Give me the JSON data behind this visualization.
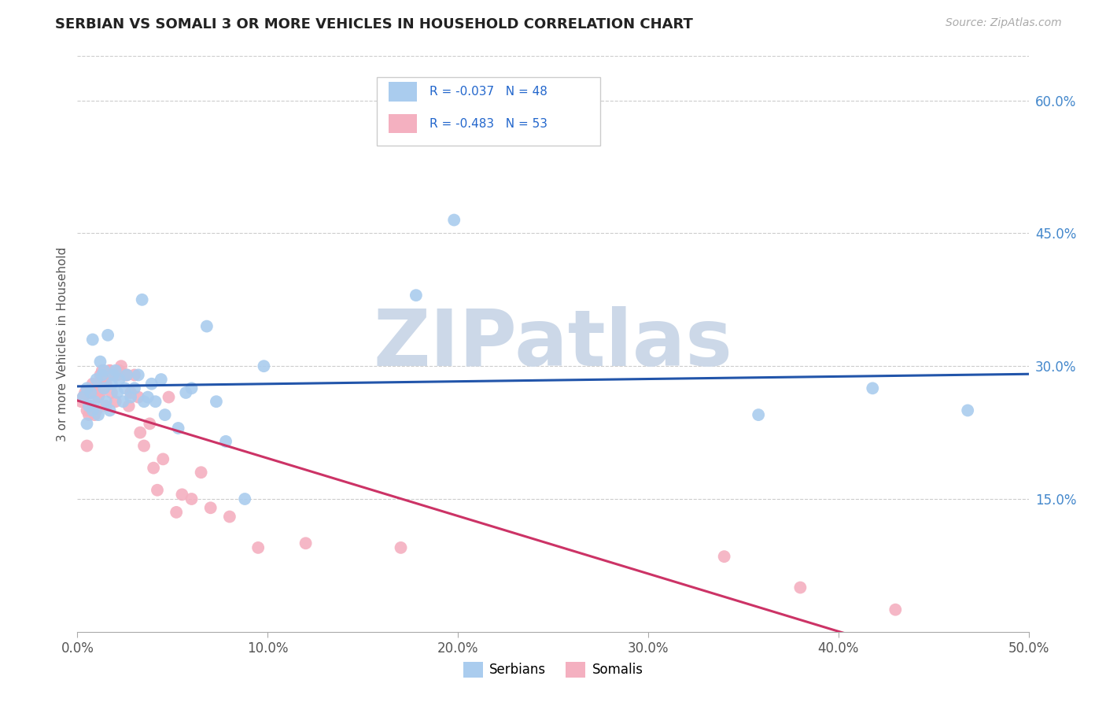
{
  "title": "SERBIAN VS SOMALI 3 OR MORE VEHICLES IN HOUSEHOLD CORRELATION CHART",
  "source": "Source: ZipAtlas.com",
  "ylabel": "3 or more Vehicles in Household",
  "xlim": [
    0.0,
    0.5
  ],
  "ylim": [
    0.0,
    0.65
  ],
  "xticks": [
    0.0,
    0.1,
    0.2,
    0.3,
    0.4,
    0.5
  ],
  "xticklabels": [
    "0.0%",
    "10.0%",
    "20.0%",
    "30.0%",
    "40.0%",
    "50.0%"
  ],
  "yticks": [
    0.15,
    0.3,
    0.45,
    0.6
  ],
  "yticklabels": [
    "15.0%",
    "30.0%",
    "45.0%",
    "60.0%"
  ],
  "grid_color": "#cccccc",
  "serbian_color": "#aaccee",
  "somali_color": "#f4b0c0",
  "serbian_line_color": "#2255aa",
  "somali_line_color": "#cc3366",
  "serbian_R": -0.037,
  "serbian_N": 48,
  "somali_R": -0.483,
  "somali_N": 53,
  "watermark_text": "ZIPatlas",
  "watermark_color": "#ccd8e8",
  "legend_text_color": "#2266cc",
  "legend_N_color": "#2266cc",
  "serbian_x": [
    0.003,
    0.005,
    0.005,
    0.006,
    0.007,
    0.008,
    0.008,
    0.009,
    0.01,
    0.011,
    0.012,
    0.013,
    0.014,
    0.014,
    0.015,
    0.016,
    0.017,
    0.018,
    0.019,
    0.02,
    0.021,
    0.022,
    0.024,
    0.025,
    0.026,
    0.028,
    0.03,
    0.032,
    0.034,
    0.035,
    0.037,
    0.039,
    0.041,
    0.044,
    0.046,
    0.053,
    0.057,
    0.06,
    0.068,
    0.073,
    0.078,
    0.088,
    0.098,
    0.178,
    0.198,
    0.358,
    0.418,
    0.468
  ],
  "serbian_y": [
    0.265,
    0.275,
    0.235,
    0.255,
    0.27,
    0.25,
    0.33,
    0.26,
    0.285,
    0.245,
    0.305,
    0.29,
    0.275,
    0.295,
    0.26,
    0.335,
    0.25,
    0.28,
    0.29,
    0.295,
    0.27,
    0.285,
    0.26,
    0.275,
    0.29,
    0.265,
    0.275,
    0.29,
    0.375,
    0.26,
    0.265,
    0.28,
    0.26,
    0.285,
    0.245,
    0.23,
    0.27,
    0.275,
    0.345,
    0.26,
    0.215,
    0.15,
    0.3,
    0.38,
    0.465,
    0.245,
    0.275,
    0.25
  ],
  "somali_x": [
    0.002,
    0.003,
    0.004,
    0.005,
    0.005,
    0.006,
    0.007,
    0.007,
    0.008,
    0.009,
    0.01,
    0.01,
    0.011,
    0.012,
    0.012,
    0.013,
    0.014,
    0.015,
    0.015,
    0.016,
    0.017,
    0.017,
    0.018,
    0.019,
    0.02,
    0.021,
    0.022,
    0.023,
    0.025,
    0.026,
    0.027,
    0.028,
    0.03,
    0.032,
    0.033,
    0.035,
    0.038,
    0.04,
    0.042,
    0.045,
    0.048,
    0.052,
    0.055,
    0.06,
    0.065,
    0.07,
    0.08,
    0.095,
    0.12,
    0.17,
    0.34,
    0.38,
    0.43
  ],
  "somali_y": [
    0.26,
    0.265,
    0.27,
    0.25,
    0.21,
    0.245,
    0.27,
    0.255,
    0.28,
    0.245,
    0.275,
    0.25,
    0.265,
    0.29,
    0.27,
    0.295,
    0.285,
    0.255,
    0.28,
    0.29,
    0.295,
    0.295,
    0.27,
    0.29,
    0.26,
    0.29,
    0.295,
    0.3,
    0.29,
    0.29,
    0.255,
    0.27,
    0.29,
    0.265,
    0.225,
    0.21,
    0.235,
    0.185,
    0.16,
    0.195,
    0.265,
    0.135,
    0.155,
    0.15,
    0.18,
    0.14,
    0.13,
    0.095,
    0.1,
    0.095,
    0.085,
    0.05,
    0.025
  ]
}
